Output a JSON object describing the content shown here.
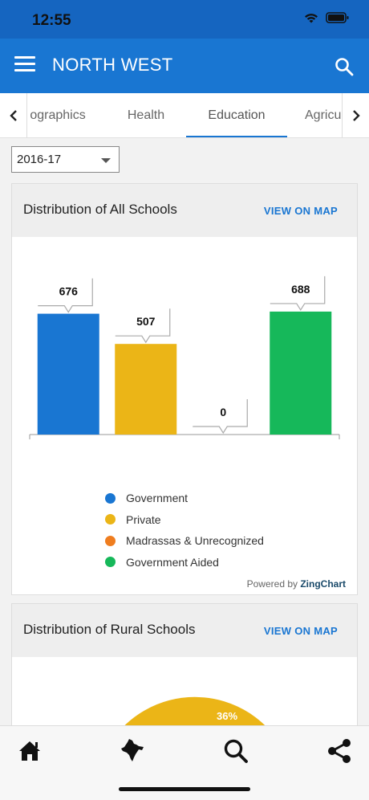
{
  "status": {
    "time": "12:55"
  },
  "header": {
    "title": "NORTH WEST"
  },
  "tabs": [
    {
      "label": "ographics"
    },
    {
      "label": "Health"
    },
    {
      "label": "Education"
    },
    {
      "label": "Agricu"
    }
  ],
  "filter": {
    "year": "2016-17"
  },
  "all_schools": {
    "title": "Distribution of All Schools",
    "link": "VIEW ON MAP",
    "powered_prefix": "Powered by ",
    "powered_brand": "ZingChart"
  },
  "rural_schools": {
    "title": "Distribution of Rural Schools",
    "link": "VIEW ON MAP"
  },
  "colors": {
    "accent": "#1976d2",
    "government": "#1976d2",
    "private": "#ebb517",
    "madrassas": "#ef7d1f",
    "government_aided": "#16b85a"
  },
  "chart_data": [
    {
      "type": "bar",
      "title": "Distribution of All Schools",
      "categories": [
        "Government",
        "Private",
        "Madrassas & Unrecognized",
        "Government Aided"
      ],
      "series": [
        {
          "name": "Government",
          "values": [
            676,
            0,
            0,
            0
          ]
        },
        {
          "name": "Private",
          "values": [
            0,
            507,
            0,
            0
          ]
        },
        {
          "name": "Madrassas & Unrecognized",
          "values": [
            0,
            0,
            0,
            0
          ]
        },
        {
          "name": "Government Aided",
          "values": [
            0,
            0,
            0,
            688
          ]
        }
      ],
      "values": [
        676,
        507,
        0,
        688
      ],
      "value_labels": [
        "676",
        "507",
        "0",
        "688"
      ],
      "ylim": [
        0,
        800
      ],
      "grid": false,
      "legend_position": "bottom"
    },
    {
      "type": "pie",
      "title": "Distribution of Rural Schools",
      "visible_slice_labels": [
        "36%"
      ]
    }
  ],
  "bottom_nav": [
    {
      "icon": "home-icon"
    },
    {
      "icon": "india-map-icon"
    },
    {
      "icon": "search-icon"
    },
    {
      "icon": "share-icon"
    }
  ]
}
